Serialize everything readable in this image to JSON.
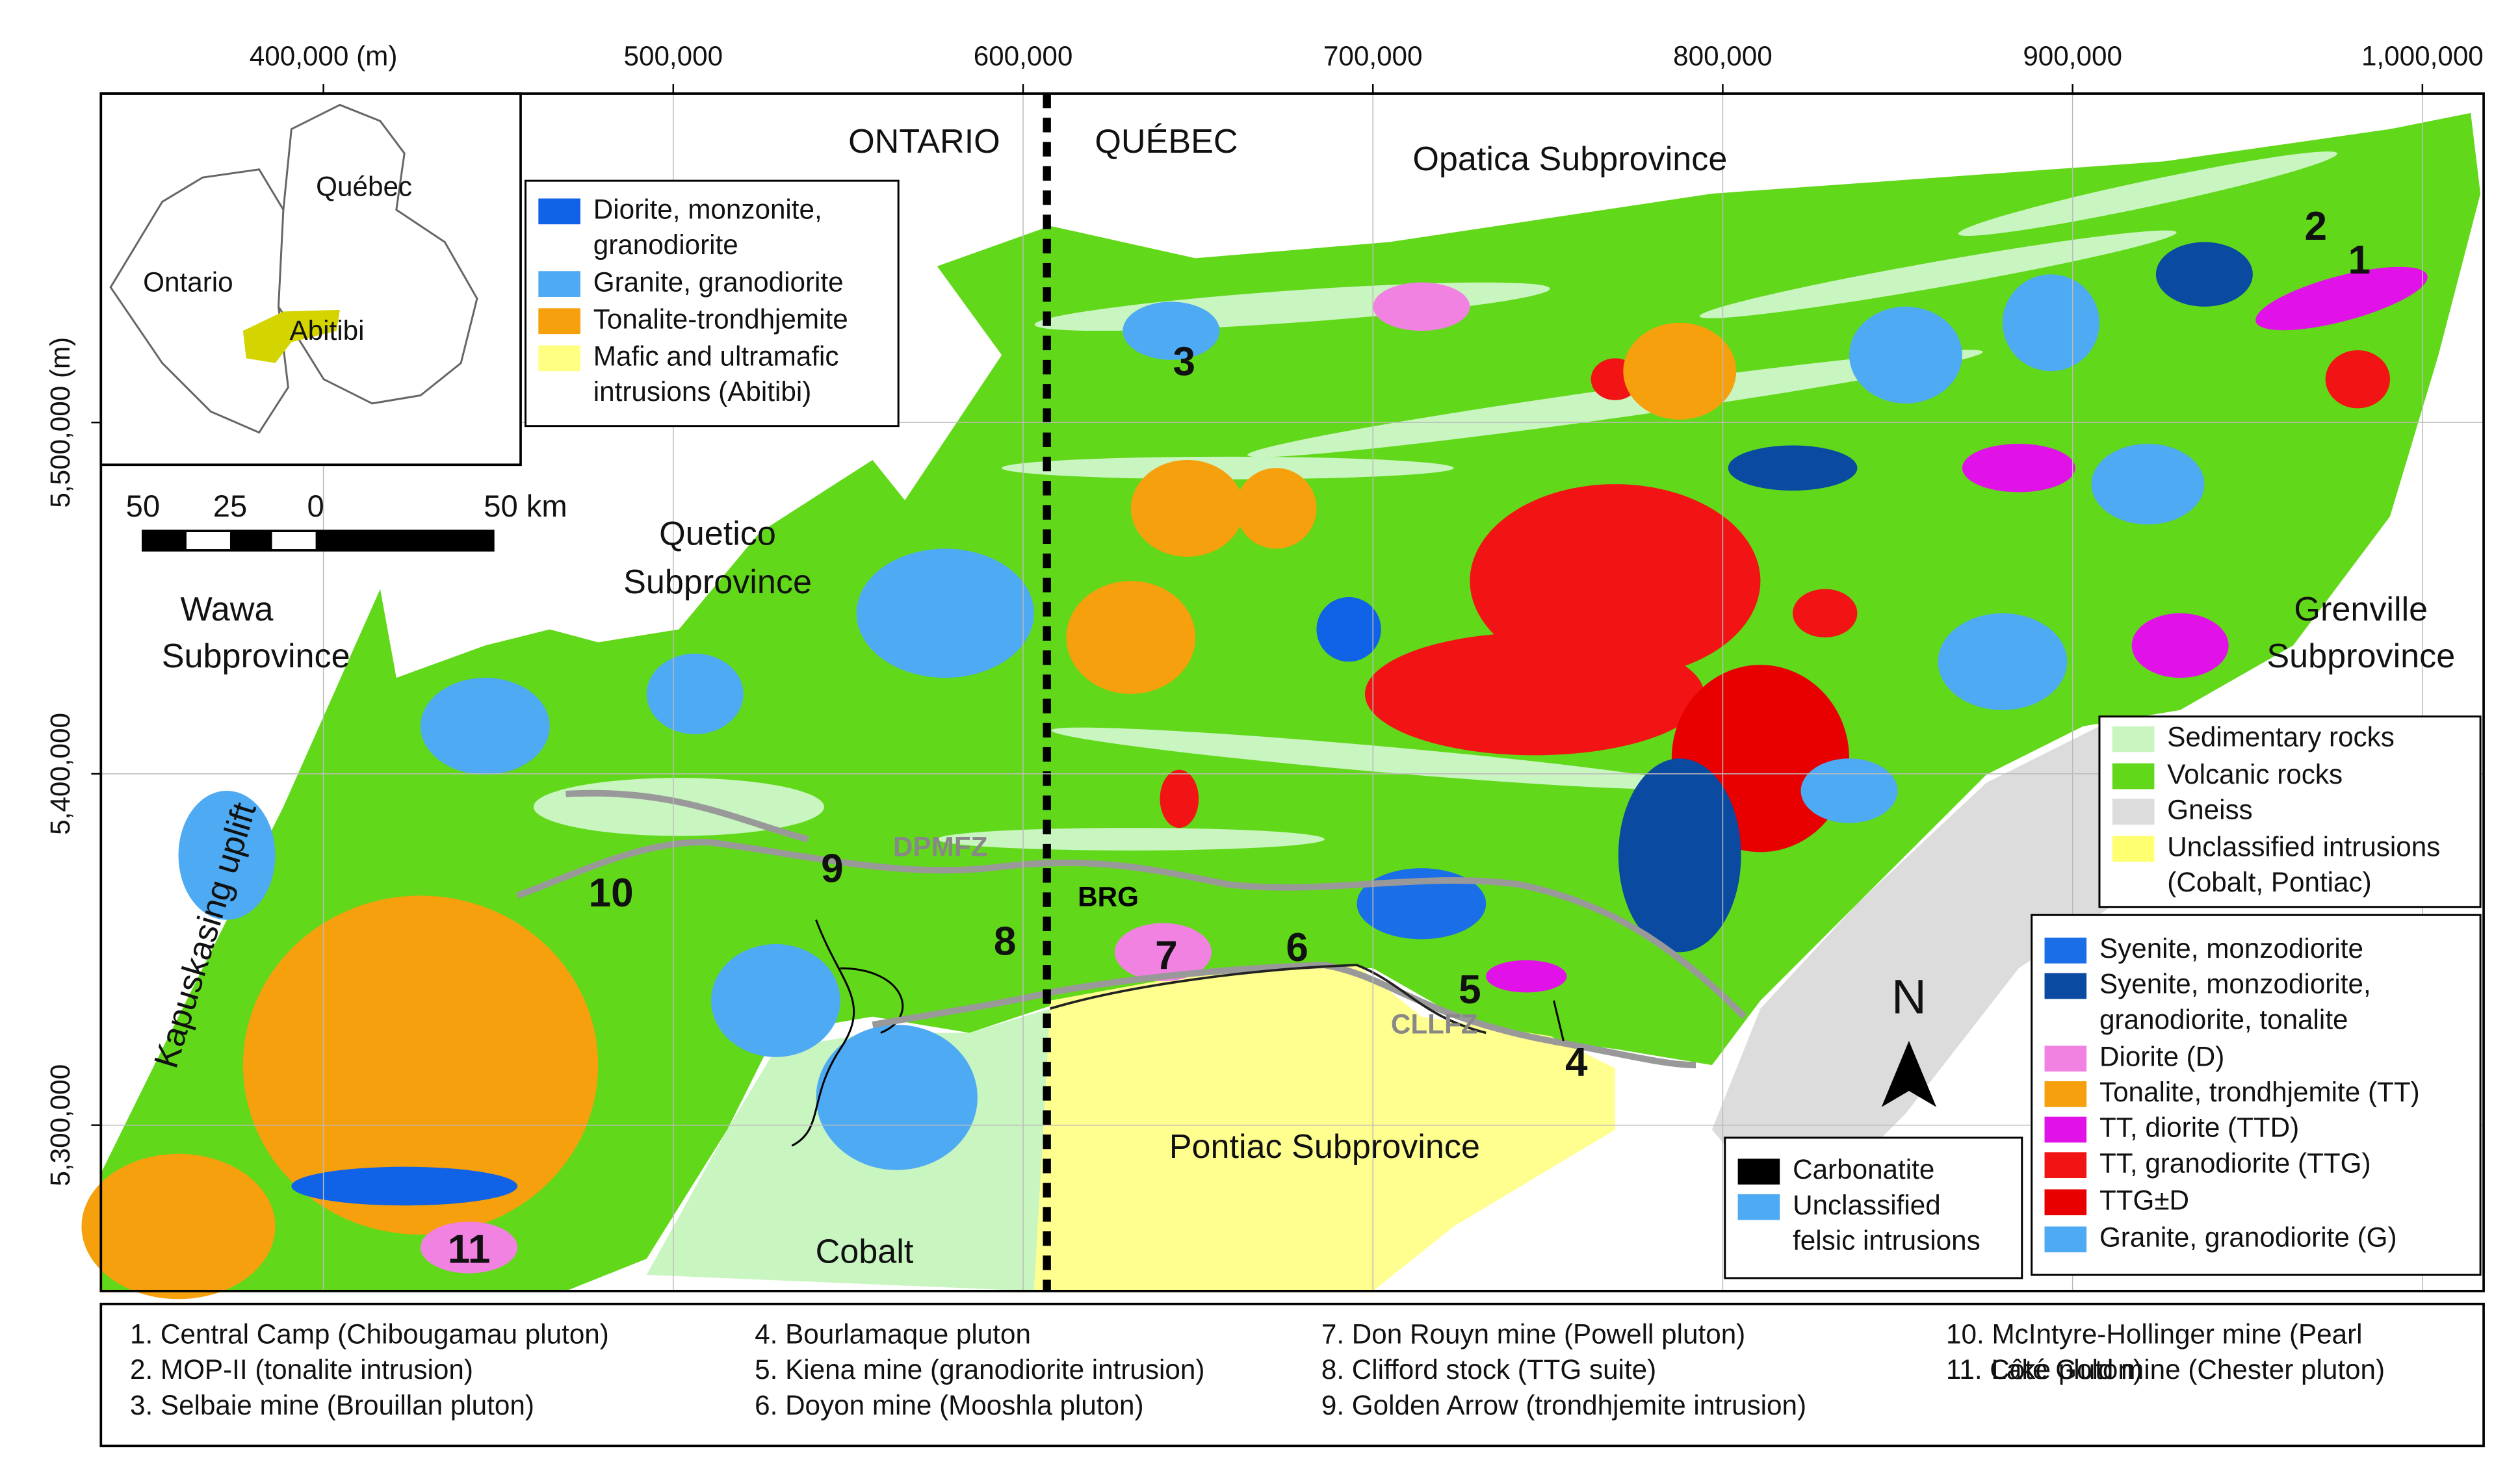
{
  "map": {
    "xlim": [
      336400,
      1017500
    ],
    "ylim": [
      5252800,
      5593600
    ],
    "xticks": [
      {
        "value": 400000,
        "label": "400,000 (m)"
      },
      {
        "value": 500000,
        "label": "500,000"
      },
      {
        "value": 600000,
        "label": "600,000"
      },
      {
        "value": 700000,
        "label": "700,000"
      },
      {
        "value": 800000,
        "label": "800,000"
      },
      {
        "value": 900000,
        "label": "900,000"
      },
      {
        "value": 1000000,
        "label": "1,000,000"
      }
    ],
    "yticks": [
      {
        "value": 5300000,
        "label": "5,300,000"
      },
      {
        "value": 5400000,
        "label": "5,400,000"
      },
      {
        "value": 5500000,
        "label": "5,500,000 (m)"
      }
    ],
    "grid": true
  },
  "border_labels": [
    "ONTARIO",
    "QUÉBEC"
  ],
  "region_labels": [
    {
      "lines": [
        "Opatica Subprovince"
      ]
    },
    {
      "lines": [
        "Quetico",
        "Subprovince"
      ]
    },
    {
      "lines": [
        "Wawa",
        "Subprovince"
      ]
    },
    {
      "lines": [
        "Grenville",
        "Subprovince"
      ]
    },
    {
      "lines": [
        "Pontiac Subprovince"
      ]
    },
    {
      "lines": [
        "Cobalt"
      ]
    }
  ],
  "structure_labels": [
    "DPMFZ",
    "CLLFZ",
    "BRG"
  ],
  "side_label": "Kapuskasing uplift",
  "sites": [
    "1",
    "2",
    "3",
    "4",
    "5",
    "6",
    "7",
    "8",
    "9",
    "10",
    "11"
  ],
  "inset": {
    "labels": [
      "Québec",
      "Ontario",
      "Abitibi"
    ]
  },
  "scale_bar": {
    "labels": [
      "50",
      "25",
      "0",
      "50 km"
    ]
  },
  "north": "N",
  "legends": [
    {
      "items": [
        {
          "lines": [
            "Diorite, monzonite,",
            "granodiorite"
          ],
          "color": "#1062e6"
        },
        {
          "lines": [
            "Granite, granodiorite"
          ],
          "color": "#4eaaf2"
        },
        {
          "lines": [
            "Tonalite-trondhjemite"
          ],
          "color": "#f5a00c"
        },
        {
          "lines": [
            "Mafic and ultramafic",
            "intrusions (Abitibi)"
          ],
          "color": "#ffff82"
        }
      ]
    },
    {
      "items": [
        {
          "lines": [
            "Sedimentary rocks"
          ],
          "color": "#c8f5c0"
        },
        {
          "lines": [
            "Volcanic rocks"
          ],
          "color": "#62d81a"
        },
        {
          "lines": [
            "Gneiss"
          ],
          "color": "#dcdcdc"
        },
        {
          "lines": [
            "Unclassified intrusions",
            "(Cobalt, Pontiac)"
          ],
          "color": "#ffff72"
        }
      ]
    },
    {
      "items": [
        {
          "lines": [
            "Syenite, monzodiorite"
          ],
          "color": "#1a6ee8"
        },
        {
          "lines": [
            "Syenite, monzodiorite,",
            "granodiorite, tonalite"
          ],
          "color": "#0a4aa0"
        },
        {
          "lines": [
            "Diorite (D)"
          ],
          "color": "#f282e2"
        },
        {
          "lines": [
            "Tonalite, trondhjemite (TT)"
          ],
          "color": "#f5a00c"
        },
        {
          "lines": [
            "TT, diorite (TTD)"
          ],
          "color": "#e012e8"
        },
        {
          "lines": [
            "TT, granodiorite (TTG)"
          ],
          "color": "#f21414"
        },
        {
          "lines": [
            "TTG±D"
          ],
          "color": "#e80000"
        },
        {
          "lines": [
            "Granite, granodiorite (G)"
          ],
          "color": "#4eaaf2"
        }
      ]
    },
    {
      "items": [
        {
          "lines": [
            "Carbonatite"
          ],
          "color": "#000000"
        },
        {
          "lines": [
            "Unclassified",
            "felsic intrusions"
          ],
          "color": "#4eaaf2"
        }
      ]
    }
  ],
  "footnotes": [
    [
      "1. Central Camp (Chibougamau pluton)"
    ],
    [
      "2. MOP-II (tonalite intrusion)"
    ],
    [
      "3. Selbaie mine (Brouillan pluton)"
    ],
    [
      "4. Bourlamaque pluton"
    ],
    [
      "5. Kiena mine (granodiorite intrusion)"
    ],
    [
      "6. Doyon mine (Mooshla pluton)"
    ],
    [
      "7. Don Rouyn mine (Powell pluton)"
    ],
    [
      "8. Clifford stock (TTG suite)"
    ],
    [
      "9. Golden Arrow (trondhjemite intrusion)"
    ],
    [
      "10. McIntyre-Hollinger mine (Pearl",
      "Lake pluton)"
    ],
    [
      "11. Côté Gold mine (Chester pluton)"
    ]
  ]
}
